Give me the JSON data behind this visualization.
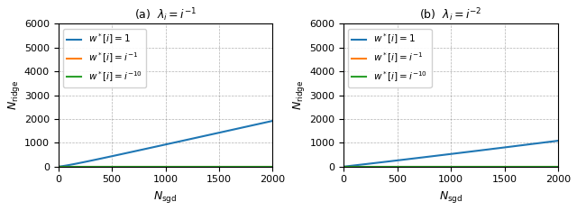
{
  "xlim": [
    0,
    2000
  ],
  "ylim": [
    0,
    6000
  ],
  "xlabel": "$N_{\\mathrm{sgd}}$",
  "ylabel": "$N_{\\mathrm{ridge}}$",
  "caption_a": "(a)  $\\lambda_i = i^{-1}$",
  "caption_b": "(b)  $\\lambda_i = i^{-2}$",
  "legend_labels": [
    "$w^*[i] = 1$",
    "$w^*[i] = i^{-1}$",
    "$w^*[i] = i^{-10}$"
  ],
  "colors": [
    "#1f77b4",
    "#ff7f0e",
    "#2ca02c"
  ],
  "figsize": [
    6.4,
    2.34
  ],
  "dpi": 100,
  "xticks": [
    0,
    500,
    1000,
    1500,
    2000
  ],
  "yticks": [
    0,
    1000,
    2000,
    3000,
    4000,
    5000,
    6000
  ],
  "N_max": 2000,
  "d": 500
}
